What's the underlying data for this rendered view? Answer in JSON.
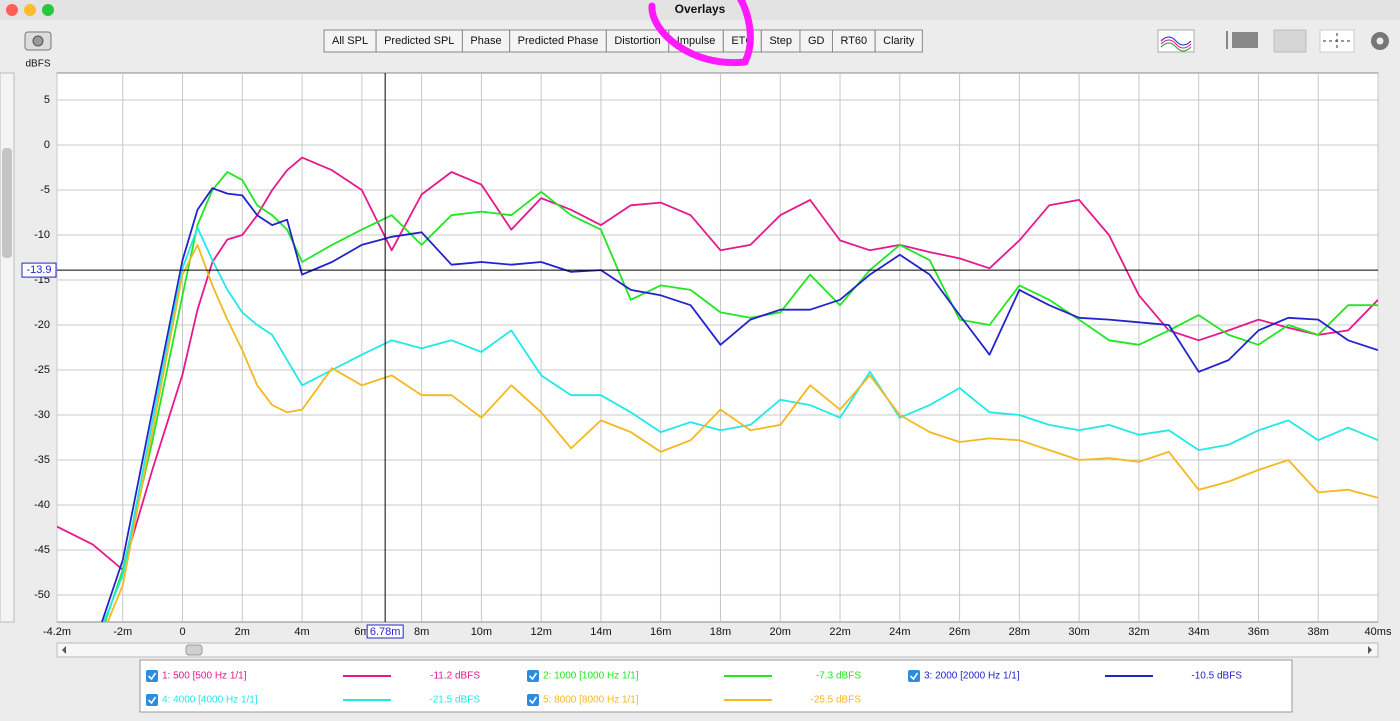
{
  "window": {
    "title": "Overlays"
  },
  "toolbar": {
    "tabs": [
      "All SPL",
      "Predicted SPL",
      "Phase",
      "Predicted Phase",
      "Distortion",
      "Impulse",
      "ETC",
      "Step",
      "GD",
      "RT60",
      "Clarity"
    ],
    "active_tab": 6
  },
  "chart_data": {
    "type": "line",
    "y_label": "dBFS",
    "xlim": [
      -4.2,
      40
    ],
    "ylim": [
      -53,
      8
    ],
    "xticks": [
      {
        "value": -4.2,
        "label": "-4.2m"
      },
      {
        "value": -2,
        "label": "-2m"
      },
      0,
      {
        "value": 2,
        "label": "2m"
      },
      {
        "value": 4,
        "label": "4m"
      },
      {
        "value": 6,
        "label": "6m"
      },
      {
        "value": 8,
        "label": "8m"
      },
      {
        "value": 10,
        "label": "10m"
      },
      {
        "value": 12,
        "label": "12m"
      },
      {
        "value": 14,
        "label": "14m"
      },
      {
        "value": 16,
        "label": "16m"
      },
      {
        "value": 18,
        "label": "18m"
      },
      {
        "value": 20,
        "label": "20m"
      },
      {
        "value": 22,
        "label": "22m"
      },
      {
        "value": 24,
        "label": "24m"
      },
      {
        "value": 26,
        "label": "26m"
      },
      {
        "value": 28,
        "label": "28m"
      },
      {
        "value": 30,
        "label": "30m"
      },
      {
        "value": 32,
        "label": "32m"
      },
      {
        "value": 34,
        "label": "34m"
      },
      {
        "value": 36,
        "label": "36m"
      },
      {
        "value": 38,
        "label": "38m"
      },
      {
        "value": 40,
        "label": "40ms"
      }
    ],
    "yticks": [
      5,
      0,
      -5,
      -10,
      -15,
      -20,
      -25,
      -30,
      -35,
      -40,
      -45,
      -50
    ],
    "grid": true,
    "cursor": {
      "x": {
        "value": 6.78,
        "label": "6.78m"
      },
      "y": -13.9
    },
    "x": [
      -4.2,
      -3,
      -2,
      -1,
      0,
      0.5,
      1,
      1.5,
      2,
      2.5,
      3,
      3.5,
      4,
      5,
      6,
      7,
      8,
      9,
      10,
      11,
      12,
      13,
      14,
      15,
      16,
      17,
      18,
      19,
      20,
      21,
      22,
      23,
      24,
      25,
      26,
      27,
      28,
      29,
      30,
      31,
      32,
      33,
      34,
      35,
      36,
      37,
      38,
      39,
      40
    ],
    "series": [
      {
        "name": "1: 500 [500 Hz 1/1]",
        "readout": "-11.2 dBFS",
        "color": "#e6198c",
        "values": [
          -42.4,
          -44.4,
          -47.2,
          -36,
          -25.5,
          -18.3,
          -13,
          -10.5,
          -10,
          -7.8,
          -5,
          -2.8,
          -1.4,
          -2.8,
          -5,
          -11.7,
          -5.5,
          -3,
          -4.4,
          -9.4,
          -5.9,
          -7.2,
          -8.9,
          -6.7,
          -6.4,
          -7.8,
          -11.7,
          -11.1,
          -7.8,
          -6.1,
          -10.6,
          -11.7,
          -11.1,
          -11.9,
          -12.6,
          -13.7,
          -10.6,
          -6.7,
          -6.1,
          -10,
          -16.7,
          -20.6,
          -21.7,
          -20.6,
          -19.4,
          -20.3,
          -21.1,
          -20.6,
          -17.2
        ]
      },
      {
        "name": "2: 1000 [1000 Hz 1/1]",
        "readout": "-7.3 dBFS",
        "color": "#22e622",
        "values": [
          null,
          -57,
          -47.2,
          -32.8,
          -16.7,
          -8.9,
          -5,
          -3,
          -3.9,
          -6.7,
          -7.8,
          -9.4,
          -13,
          -11.1,
          -9.4,
          -7.8,
          -11.1,
          -7.8,
          -7.4,
          -7.8,
          -5.2,
          -7.8,
          -9.4,
          -17.2,
          -15.6,
          -16.1,
          -18.6,
          -19.2,
          -18.6,
          -14.4,
          -17.8,
          -13.9,
          -11.1,
          -12.8,
          -19.4,
          -20,
          -15.6,
          -17.2,
          -19.4,
          -21.7,
          -22.2,
          -20.6,
          -18.9,
          -21.1,
          -22.2,
          -20,
          -21.1,
          -17.8,
          -17.8
        ]
      },
      {
        "name": "3: 2000 [2000 Hz 1/1]",
        "readout": "-10.5 dBFS",
        "color": "#2323cc",
        "values": [
          null,
          -56,
          -46.1,
          -29.4,
          -12.8,
          -7.2,
          -4.8,
          -5.4,
          -5.6,
          -7.8,
          -8.9,
          -8.3,
          -14.4,
          -13,
          -11.1,
          -10.2,
          -9.7,
          -13.3,
          -13,
          -13.3,
          -13,
          -14.1,
          -13.9,
          -16.1,
          -16.7,
          -17.8,
          -22.2,
          -19.4,
          -18.3,
          -18.3,
          -17.2,
          -14.4,
          -12.2,
          -14.4,
          -18.9,
          -23.3,
          -16.1,
          -17.8,
          -19.2,
          -19.4,
          -19.7,
          -20,
          -25.2,
          -23.9,
          -20.6,
          -19.2,
          -19.4,
          -21.7,
          -22.8
        ]
      },
      {
        "name": "4: 4000 [4000 Hz 1/1]",
        "readout": "-21.5 dBFS",
        "color": "#22e8e8",
        "values": [
          null,
          -56,
          -47.8,
          -30.6,
          -13.7,
          -9.2,
          -12.8,
          -16.1,
          -18.6,
          -20,
          -21.1,
          -23.9,
          -26.7,
          -25,
          -23.3,
          -21.7,
          -22.6,
          -21.7,
          -23,
          -20.6,
          -25.6,
          -27.8,
          -27.8,
          -29.7,
          -31.9,
          -30.8,
          -31.7,
          -31.1,
          -28.3,
          -28.9,
          -30.3,
          -25.2,
          -30.3,
          -28.9,
          -27,
          -29.7,
          -30,
          -31.1,
          -31.7,
          -31.1,
          -32.2,
          -31.7,
          -33.9,
          -33.3,
          -31.7,
          -30.6,
          -32.8,
          -31.4,
          -32.8
        ]
      },
      {
        "name": "5: 8000 [8000 Hz 1/1]",
        "readout": "-25.5 dBFS",
        "color": "#f5b820",
        "values": [
          null,
          -57,
          -48.9,
          -31.7,
          -14.4,
          -11.1,
          -15.6,
          -19.4,
          -22.8,
          -26.7,
          -28.9,
          -29.7,
          -29.4,
          -24.8,
          -26.7,
          -25.6,
          -27.8,
          -27.8,
          -30.3,
          -26.7,
          -29.7,
          -33.7,
          -30.6,
          -31.9,
          -34.1,
          -32.8,
          -29.4,
          -31.7,
          -31.1,
          -26.7,
          -29.4,
          -25.6,
          -30,
          -31.9,
          -33,
          -32.6,
          -32.8,
          -33.9,
          -35,
          -34.8,
          -35.2,
          -34.1,
          -38.3,
          -37.4,
          -36.1,
          -35,
          -38.6,
          -38.3,
          -39.2
        ]
      }
    ]
  }
}
